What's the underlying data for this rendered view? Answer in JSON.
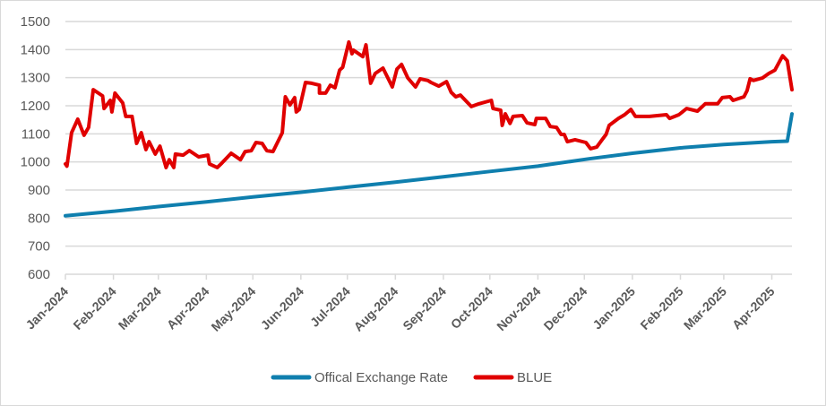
{
  "chart_data": {
    "type": "line",
    "title": "",
    "xlabel": "",
    "ylabel": "",
    "x_unit": "days since 2024-01-01",
    "xlim": [
      0,
      469
    ],
    "ylim": [
      600,
      1500
    ],
    "y_ticks": [
      600,
      700,
      800,
      900,
      1000,
      1100,
      1200,
      1300,
      1400,
      1500
    ],
    "x_ticks": [
      {
        "label": "Jan-2024",
        "day": 0
      },
      {
        "label": "Feb-2024",
        "day": 31
      },
      {
        "label": "Mar-2024",
        "day": 60
      },
      {
        "label": "Apr-2024",
        "day": 91
      },
      {
        "label": "May-2024",
        "day": 121
      },
      {
        "label": "Jun-2024",
        "day": 152
      },
      {
        "label": "Jul-2024",
        "day": 182
      },
      {
        "label": "Aug-2024",
        "day": 213
      },
      {
        "label": "Sep-2024",
        "day": 244
      },
      {
        "label": "Oct-2024",
        "day": 274
      },
      {
        "label": "Nov-2024",
        "day": 305
      },
      {
        "label": "Dec-2024",
        "day": 335
      },
      {
        "label": "Jan-2025",
        "day": 366
      },
      {
        "label": "Feb-2025",
        "day": 397
      },
      {
        "label": "Mar-2025",
        "day": 425
      },
      {
        "label": "Apr-2025",
        "day": 456
      }
    ],
    "grid": true,
    "legend": "bottom-center",
    "series": [
      {
        "name": "Offical Exchange Rate",
        "color": "#0f7fae",
        "points": [
          [
            0,
            808
          ],
          [
            31,
            824
          ],
          [
            60,
            841
          ],
          [
            91,
            858
          ],
          [
            121,
            875
          ],
          [
            152,
            892
          ],
          [
            182,
            910
          ],
          [
            213,
            928
          ],
          [
            244,
            947
          ],
          [
            274,
            966
          ],
          [
            305,
            985
          ],
          [
            338,
            1011
          ],
          [
            366,
            1031
          ],
          [
            397,
            1050
          ],
          [
            425,
            1062
          ],
          [
            456,
            1072
          ],
          [
            466,
            1074
          ],
          [
            469,
            1171
          ]
        ]
      },
      {
        "name": "BLUE",
        "color": "#e00000",
        "points": [
          [
            0,
            993
          ],
          [
            1,
            985
          ],
          [
            4,
            1104
          ],
          [
            8,
            1152
          ],
          [
            12,
            1095
          ],
          [
            15,
            1123
          ],
          [
            18,
            1257
          ],
          [
            24,
            1235
          ],
          [
            25,
            1190
          ],
          [
            29,
            1219
          ],
          [
            30,
            1178
          ],
          [
            32,
            1245
          ],
          [
            37,
            1210
          ],
          [
            39,
            1162
          ],
          [
            43,
            1162
          ],
          [
            46,
            1066
          ],
          [
            49,
            1104
          ],
          [
            52,
            1044
          ],
          [
            54,
            1072
          ],
          [
            58,
            1028
          ],
          [
            61,
            1056
          ],
          [
            65,
            980
          ],
          [
            67,
            1008
          ],
          [
            70,
            980
          ],
          [
            71,
            1028
          ],
          [
            76,
            1024
          ],
          [
            80,
            1040
          ],
          [
            86,
            1018
          ],
          [
            92,
            1024
          ],
          [
            93,
            993
          ],
          [
            98,
            980
          ],
          [
            101,
            996
          ],
          [
            107,
            1031
          ],
          [
            113,
            1008
          ],
          [
            116,
            1037
          ],
          [
            120,
            1040
          ],
          [
            123,
            1069
          ],
          [
            127,
            1066
          ],
          [
            130,
            1040
          ],
          [
            134,
            1037
          ],
          [
            140,
            1104
          ],
          [
            142,
            1232
          ],
          [
            145,
            1203
          ],
          [
            148,
            1229
          ],
          [
            149,
            1178
          ],
          [
            151,
            1187
          ],
          [
            155,
            1283
          ],
          [
            159,
            1280
          ],
          [
            164,
            1273
          ],
          [
            164,
            1245
          ],
          [
            168,
            1245
          ],
          [
            171,
            1273
          ],
          [
            174,
            1264
          ],
          [
            177,
            1327
          ],
          [
            179,
            1337
          ],
          [
            183,
            1427
          ],
          [
            185,
            1385
          ],
          [
            186,
            1398
          ],
          [
            192,
            1375
          ],
          [
            194,
            1417
          ],
          [
            197,
            1280
          ],
          [
            200,
            1315
          ],
          [
            205,
            1334
          ],
          [
            211,
            1267
          ],
          [
            214,
            1331
          ],
          [
            217,
            1347
          ],
          [
            221,
            1299
          ],
          [
            226,
            1267
          ],
          [
            229,
            1296
          ],
          [
            234,
            1290
          ],
          [
            236,
            1283
          ],
          [
            241,
            1270
          ],
          [
            246,
            1286
          ],
          [
            249,
            1248
          ],
          [
            252,
            1232
          ],
          [
            255,
            1238
          ],
          [
            262,
            1197
          ],
          [
            267,
            1207
          ],
          [
            275,
            1219
          ],
          [
            276,
            1190
          ],
          [
            281,
            1184
          ],
          [
            282,
            1130
          ],
          [
            284,
            1171
          ],
          [
            287,
            1137
          ],
          [
            289,
            1162
          ],
          [
            295,
            1165
          ],
          [
            298,
            1139
          ],
          [
            303,
            1133
          ],
          [
            304,
            1155
          ],
          [
            310,
            1155
          ],
          [
            313,
            1126
          ],
          [
            317,
            1123
          ],
          [
            320,
            1098
          ],
          [
            322,
            1098
          ],
          [
            324,
            1072
          ],
          [
            329,
            1079
          ],
          [
            336,
            1069
          ],
          [
            339,
            1047
          ],
          [
            343,
            1053
          ],
          [
            346,
            1076
          ],
          [
            349,
            1098
          ],
          [
            351,
            1130
          ],
          [
            357,
            1155
          ],
          [
            361,
            1168
          ],
          [
            365,
            1187
          ],
          [
            368,
            1162
          ],
          [
            377,
            1162
          ],
          [
            388,
            1168
          ],
          [
            390,
            1155
          ],
          [
            396,
            1168
          ],
          [
            401,
            1190
          ],
          [
            408,
            1181
          ],
          [
            413,
            1207
          ],
          [
            421,
            1207
          ],
          [
            424,
            1229
          ],
          [
            429,
            1232
          ],
          [
            431,
            1219
          ],
          [
            438,
            1232
          ],
          [
            440,
            1254
          ],
          [
            442,
            1296
          ],
          [
            444,
            1290
          ],
          [
            450,
            1299
          ],
          [
            454,
            1315
          ],
          [
            458,
            1327
          ],
          [
            463,
            1378
          ],
          [
            466,
            1360
          ],
          [
            469,
            1257
          ]
        ]
      }
    ]
  }
}
